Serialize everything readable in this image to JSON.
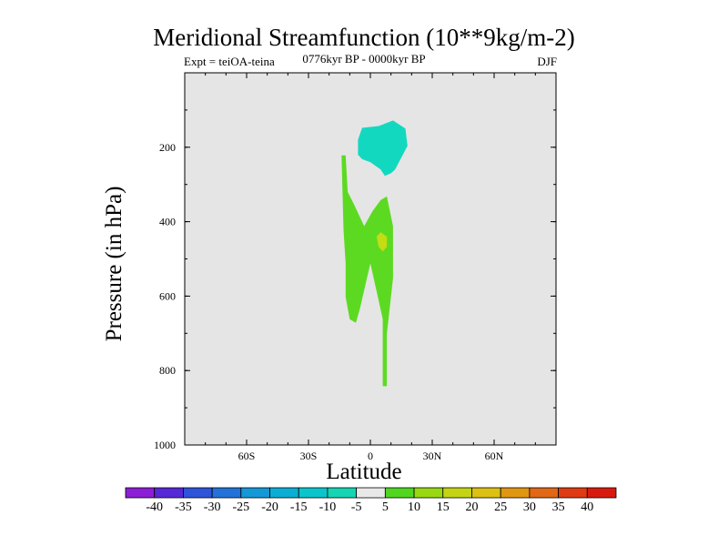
{
  "chart_data": {
    "type": "contour",
    "title": "Meridional Streamfunction (10**9kg/m-2)",
    "left_label": "Expt = teiOA-teina",
    "center_label": "0776kyr BP - 0000kyr BP",
    "right_label": "DJF",
    "xlabel": "Latitude",
    "ylabel": "Pressure (in hPa)",
    "xlim": [
      -90,
      90
    ],
    "ylim": [
      1000,
      0
    ],
    "x_ticks": [
      {
        "value": -60,
        "label": "60S"
      },
      {
        "value": -30,
        "label": "30S"
      },
      {
        "value": 0,
        "label": "0"
      },
      {
        "value": 30,
        "label": "30N"
      },
      {
        "value": 60,
        "label": "60N"
      }
    ],
    "y_ticks": [
      {
        "value": 200,
        "label": "200"
      },
      {
        "value": 400,
        "label": "400"
      },
      {
        "value": 600,
        "label": "600"
      },
      {
        "value": 800,
        "label": "800"
      },
      {
        "value": 1000,
        "label": "1000"
      }
    ],
    "background_fill": "#e5e5e5",
    "regions": [
      {
        "name": "negative cell",
        "level": "-10 to -5",
        "color": "#13d8c0",
        "points": [
          [
            -4,
            148
          ],
          [
            4,
            143
          ],
          [
            11,
            128
          ],
          [
            17,
            150
          ],
          [
            18,
            196
          ],
          [
            15,
            228
          ],
          [
            12,
            260
          ],
          [
            10,
            270
          ],
          [
            7,
            277
          ],
          [
            5,
            260
          ],
          [
            0,
            240
          ],
          [
            -4,
            232
          ],
          [
            -6,
            220
          ],
          [
            -6,
            180
          ]
        ]
      },
      {
        "name": "positive cell",
        "level": "5 to 10",
        "color": "#5cda22",
        "points": [
          [
            -12,
            222
          ],
          [
            -11,
            320
          ],
          [
            -8,
            353
          ],
          [
            -3,
            412
          ],
          [
            1,
            372
          ],
          [
            5,
            342
          ],
          [
            8,
            332
          ],
          [
            11,
            412
          ],
          [
            11,
            552
          ],
          [
            8,
            702
          ],
          [
            8,
            842
          ],
          [
            6,
            842
          ],
          [
            6,
            662
          ],
          [
            4,
            612
          ],
          [
            0,
            512
          ],
          [
            -5,
            632
          ],
          [
            -7,
            672
          ],
          [
            -10,
            662
          ],
          [
            -12,
            602
          ],
          [
            -12,
            512
          ],
          [
            -13,
            422
          ],
          [
            -14,
            222
          ]
        ]
      },
      {
        "name": "positive core",
        "level": "10 to 15",
        "color": "#c3dc14",
        "points": [
          [
            5,
            428
          ],
          [
            8,
            440
          ],
          [
            8,
            468
          ],
          [
            6,
            480
          ],
          [
            4,
            468
          ],
          [
            3,
            440
          ]
        ]
      }
    ],
    "colorbar": {
      "labels": [
        "-40",
        "-35",
        "-30",
        "-25",
        "-20",
        "-15",
        "-10",
        "-5",
        "5",
        "10",
        "15",
        "20",
        "25",
        "30",
        "35",
        "40"
      ],
      "colors": [
        "#8c1ed6",
        "#5628d6",
        "#2e54da",
        "#2272d8",
        "#1498d6",
        "#0aaed4",
        "#0cc4cc",
        "#14d4b4",
        "#e8e8e8",
        "#50d61e",
        "#98d812",
        "#c4d414",
        "#dcc014",
        "#e09612",
        "#e06816",
        "#e03a14",
        "#d81a0e"
      ]
    }
  }
}
